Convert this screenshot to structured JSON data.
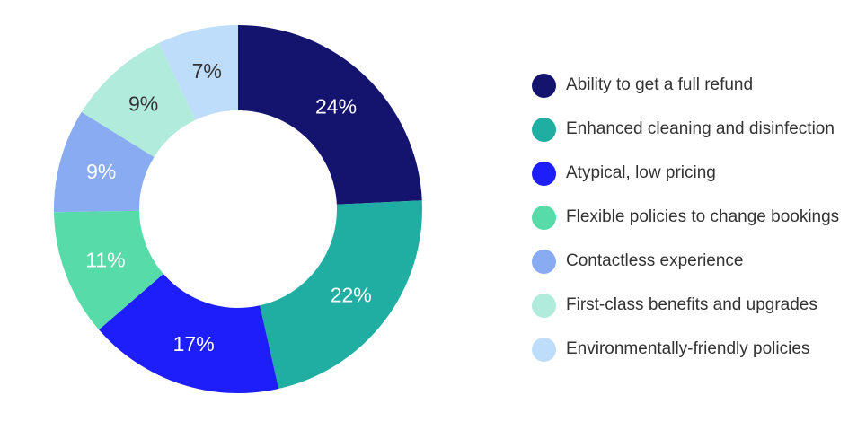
{
  "chart_data": {
    "type": "pie",
    "variant": "donut",
    "title": "",
    "slices": [
      {
        "label": "Ability to get a full refund",
        "value": 24,
        "value_label": "24%",
        "color": "#14146F",
        "value_label_color": "#FFFFFF"
      },
      {
        "label": "Enhanced cleaning and disinfection",
        "value": 22,
        "value_label": "22%",
        "color": "#1FAEA1",
        "value_label_color": "#FFFFFF"
      },
      {
        "label": "Atypical, low pricing",
        "value": 17,
        "value_label": "17%",
        "color": "#1E1EFA",
        "value_label_color": "#FFFFFF"
      },
      {
        "label": "Flexible policies to change bookings",
        "value": 11,
        "value_label": "11%",
        "color": "#57DCA9",
        "value_label_color": "#FFFFFF"
      },
      {
        "label": "Contactless experience",
        "value": 9,
        "value_label": "9%",
        "color": "#88ABF2",
        "value_label_color": "#FFFFFF"
      },
      {
        "label": "First-class benefits and upgrades",
        "value": 9,
        "value_label": "9%",
        "color": "#B0EBDC",
        "value_label_color": "#333333"
      },
      {
        "label": "Environmentally-friendly policies",
        "value": 7,
        "value_label": "7%",
        "color": "#BEDDFA",
        "value_label_color": "#333333"
      }
    ],
    "layout": {
      "legend_position": "right",
      "start_angle_deg": 0,
      "direction": "clockwise",
      "donut_hole": true,
      "inner_radius_ratio": 0.54
    },
    "legend_text_color": "#333333",
    "background_color": "#FFFFFF"
  }
}
